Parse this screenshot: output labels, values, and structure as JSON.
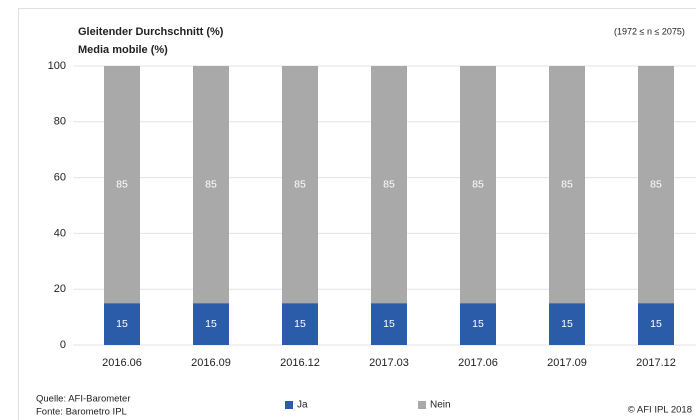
{
  "chart_data": {
    "type": "stacked_bar",
    "title": "Gleitender Durchschnitt (%)",
    "subtitle": "Media mobile (%)",
    "note": "(1972 ≤ n ≤ 2075)",
    "source": [
      "Quelle: AFI-Barometer",
      "Fonte: Barometro IPL"
    ],
    "copyright": "© AFI IPL 2018",
    "categories": [
      "2016.06",
      "2016.09",
      "2016.12",
      "2017.03",
      "2017.06",
      "2017.09",
      "2017.12"
    ],
    "series": [
      {
        "name": "Ja",
        "color": "#2b5caa",
        "values": [
          15,
          15,
          15,
          15,
          15,
          15,
          15
        ]
      },
      {
        "name": "Nein",
        "color": "#a9a9a9",
        "values": [
          85,
          85,
          85,
          85,
          85,
          85,
          85
        ]
      }
    ],
    "ylim": [
      0,
      100
    ],
    "yticks": [
      0,
      20,
      40,
      60,
      80,
      100
    ],
    "grid": true
  }
}
